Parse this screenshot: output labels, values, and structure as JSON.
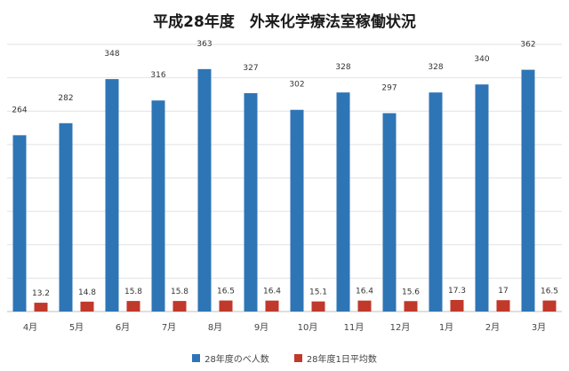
{
  "chart_data": {
    "type": "bar",
    "title": "平成28年度　外来化学療法室稼働状況",
    "categories": [
      "4月",
      "5月",
      "6月",
      "7月",
      "8月",
      "9月",
      "10月",
      "11月",
      "12月",
      "1月",
      "2月",
      "3月"
    ],
    "series": [
      {
        "name": "28年度のべ人数",
        "color": "#2e75b6",
        "values": [
          264,
          282,
          348,
          316,
          363,
          327,
          302,
          328,
          297,
          328,
          340,
          362
        ],
        "labels": [
          "264",
          "282",
          "348",
          "316",
          "363",
          "327",
          "302",
          "328",
          "297",
          "328",
          "340",
          "362"
        ]
      },
      {
        "name": "28年度1日平均数",
        "color": "#c0392b",
        "values": [
          13.2,
          14.8,
          15.8,
          15.8,
          16.5,
          16.4,
          15.1,
          16.4,
          15.6,
          17.3,
          17,
          16.5
        ],
        "labels": [
          "13.2",
          "14.8",
          "15.8",
          "15.8",
          "16.5",
          "16.4",
          "15.1",
          "16.4",
          "15.6",
          "17.3",
          "17",
          "16.5"
        ]
      }
    ],
    "ylim": [
      0,
      400
    ],
    "grid": true,
    "legend_position": "bottom"
  }
}
